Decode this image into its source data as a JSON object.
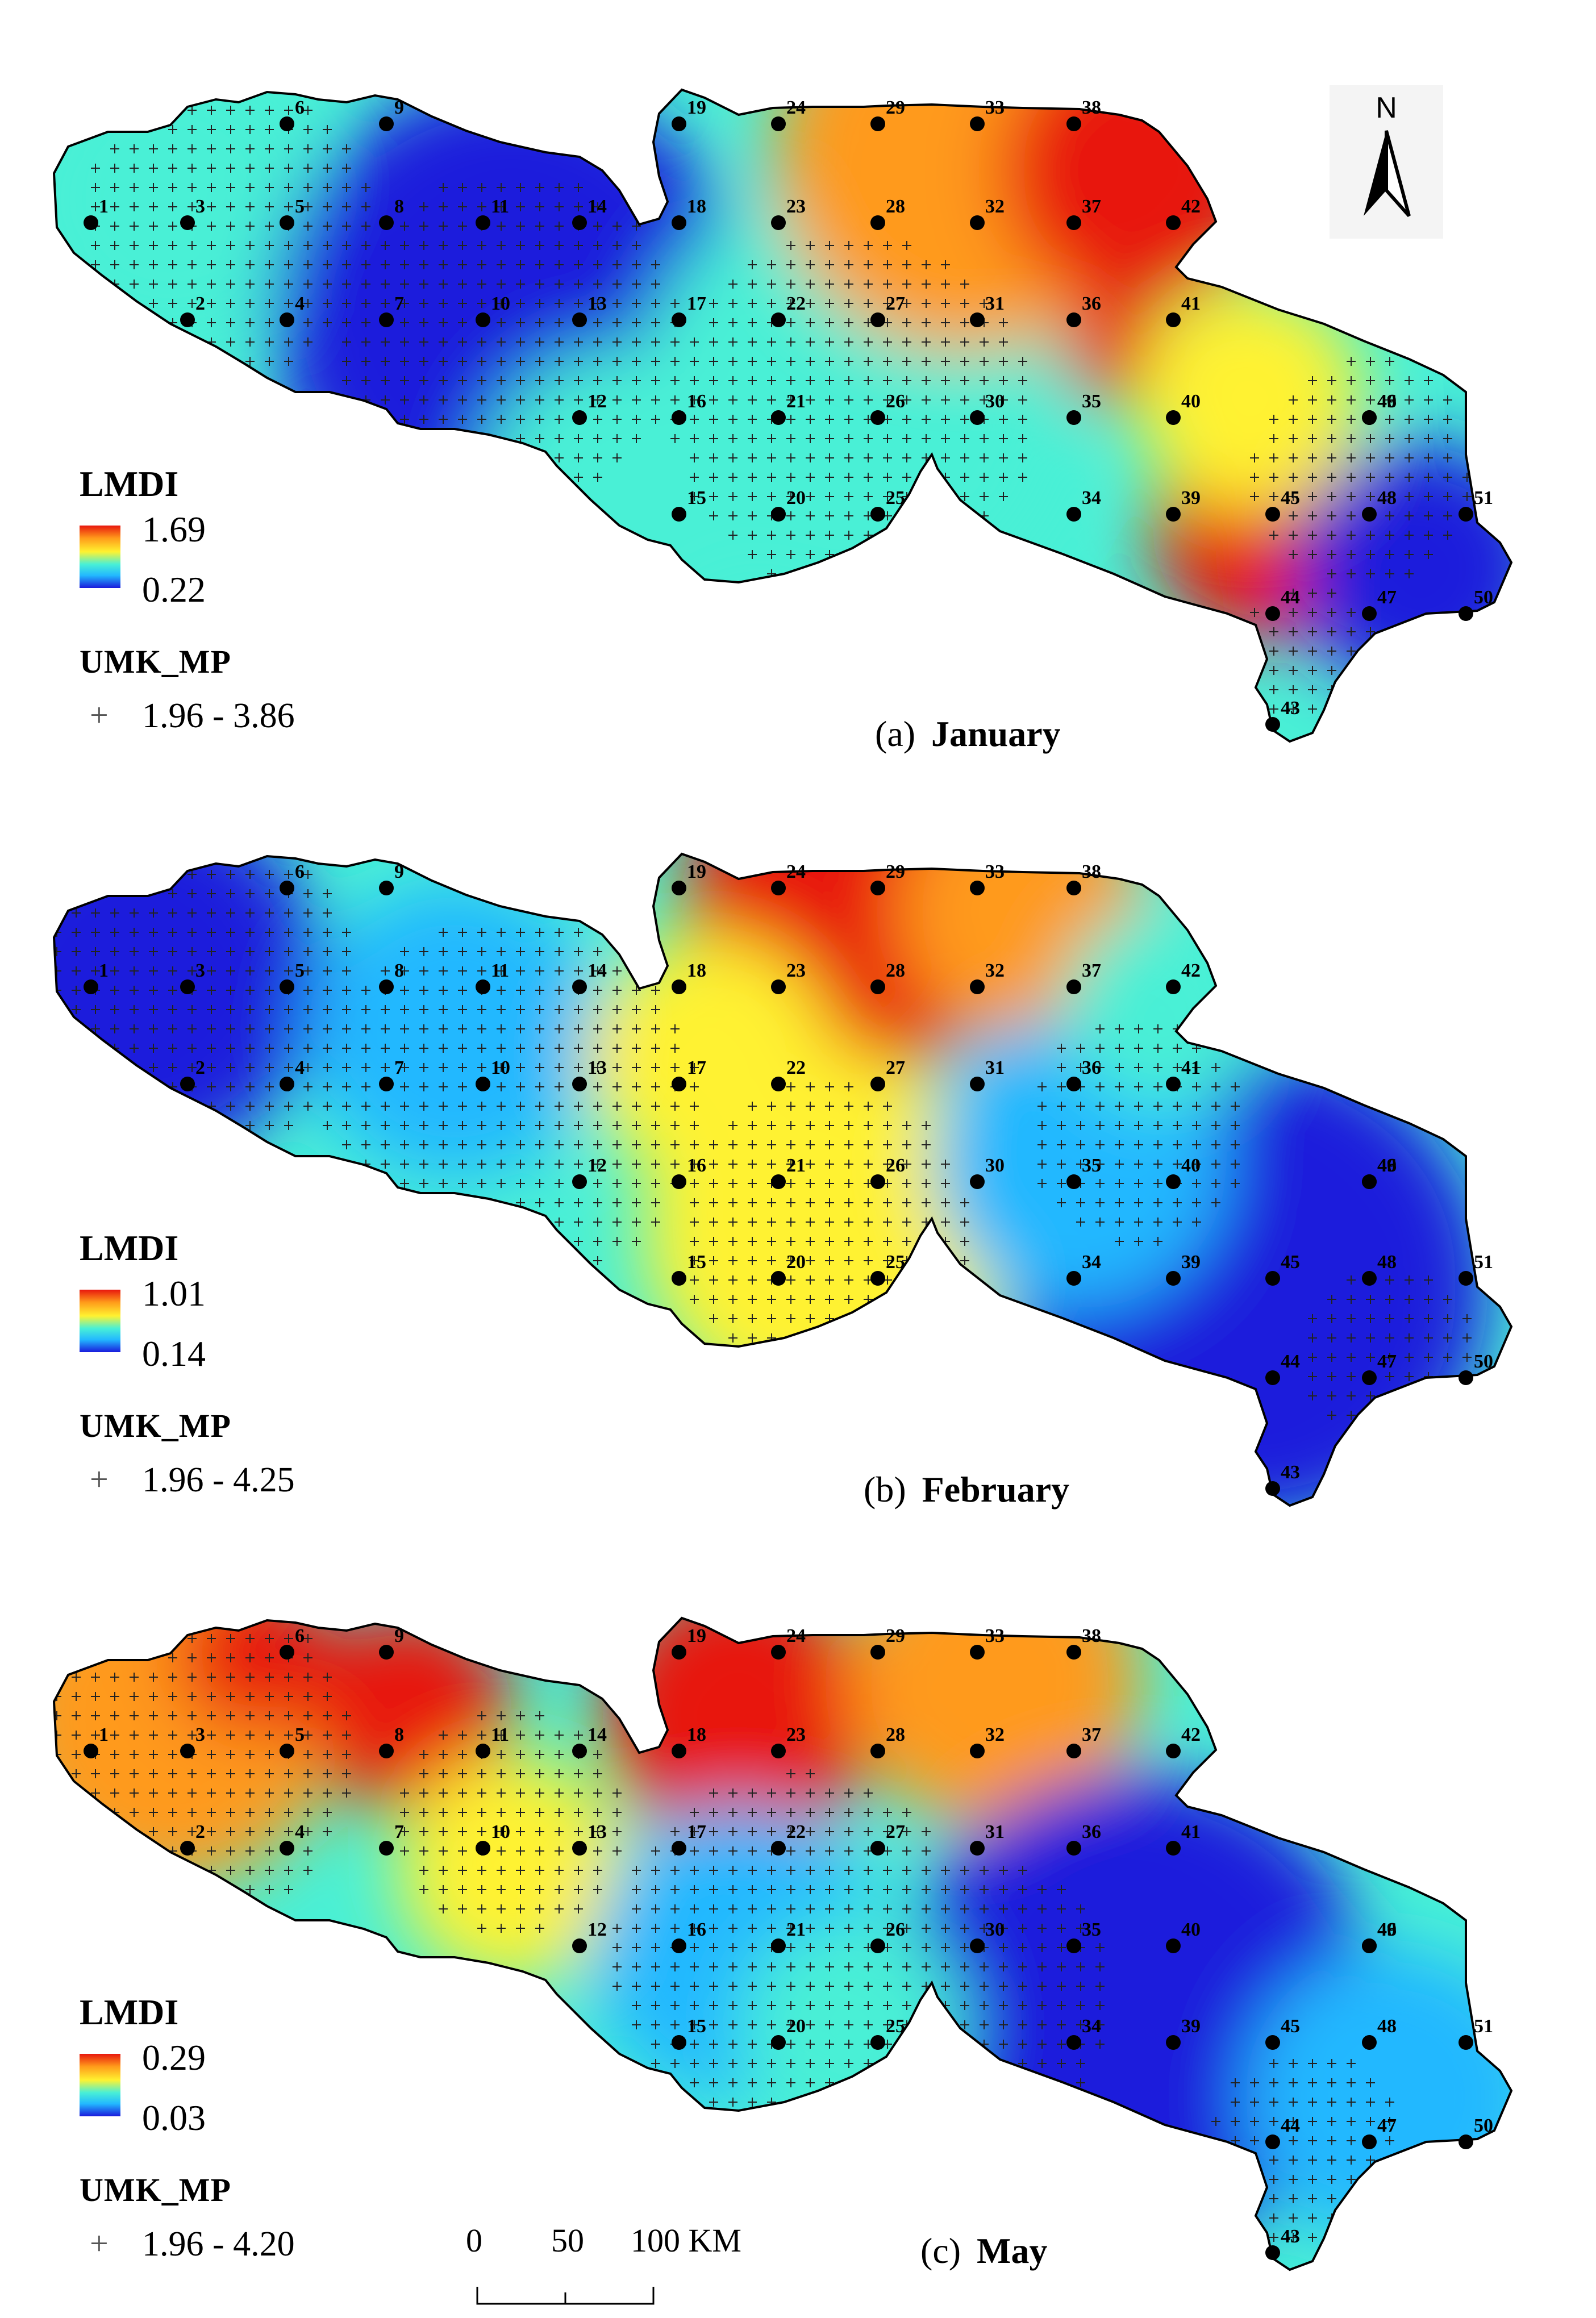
{
  "panels": [
    {
      "id": "a",
      "caption_letter": "(a)",
      "caption_month": "January",
      "legend_title": "LMDI",
      "legend_max": "1.69",
      "legend_min": "0.22",
      "significance_title": "UMK_MP",
      "significance_symbol": "+",
      "significance_range": "1.96 - 3.86"
    },
    {
      "id": "b",
      "caption_letter": "(b)",
      "caption_month": "February",
      "legend_title": "LMDI",
      "legend_max": "1.01",
      "legend_min": "0.14",
      "significance_title": "UMK_MP",
      "significance_symbol": "+",
      "significance_range": "1.96 - 4.25"
    },
    {
      "id": "c",
      "caption_letter": "(c)",
      "caption_month": "May",
      "legend_title": "LMDI",
      "legend_max": "0.29",
      "legend_min": "0.03",
      "significance_title": "UMK_MP",
      "significance_symbol": "+",
      "significance_range": "1.96 - 4.20"
    }
  ],
  "north_arrow": {
    "letter": "N"
  },
  "scale_bar": {
    "labels": [
      "0",
      "50",
      "100 KM"
    ]
  },
  "stations": [
    "1",
    "2",
    "3",
    "4",
    "5",
    "6",
    "7",
    "8",
    "9",
    "10",
    "11",
    "12",
    "13",
    "14",
    "15",
    "16",
    "17",
    "18",
    "19",
    "20",
    "21",
    "22",
    "23",
    "24",
    "25",
    "26",
    "27",
    "28",
    "29",
    "30",
    "31",
    "32",
    "33",
    "34",
    "35",
    "36",
    "37",
    "38",
    "39",
    "40",
    "41",
    "42",
    "43",
    "44",
    "45",
    "46",
    "47",
    "48",
    "49",
    "50",
    "51"
  ],
  "colors": {
    "ramp_high": "#e8170e",
    "ramp_orange": "#ff9a1a",
    "ramp_mid": "#fff230",
    "ramp_cyan": "#49f0d6",
    "ramp_blue": "#22b8ff",
    "ramp_low": "#1a1adc"
  }
}
